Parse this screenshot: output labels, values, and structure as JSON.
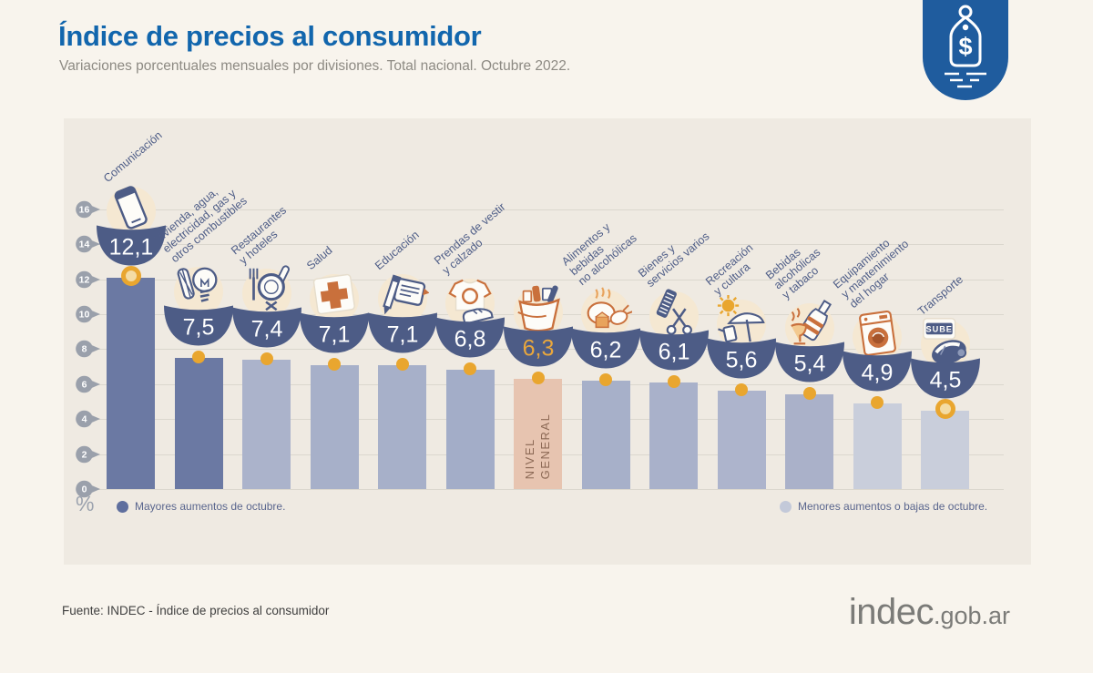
{
  "header": {
    "title": "Índice de precios al consumidor",
    "subtitle": "Variaciones porcentuales mensuales por divisiones. Total nacional. Octubre 2022.",
    "logo_icon": "price-tag-icon"
  },
  "chart_data": {
    "type": "bar",
    "title": "Índice de precios al consumidor",
    "xlabel": "",
    "ylabel": "%",
    "ylim": [
      0,
      16
    ],
    "yticks": [
      0,
      2,
      4,
      6,
      8,
      10,
      12,
      14,
      16
    ],
    "grid": true,
    "legend_position": "bottom",
    "series": [
      {
        "label": "Comunicación",
        "display": "12,1",
        "value": 12.1,
        "icon": "phone-icon",
        "color": "#6b79a3",
        "marker": "ring",
        "group": "major"
      },
      {
        "label": "Vivienda, agua,\nelectricidad, gas y\notros combustibles",
        "display": "7,5",
        "value": 7.5,
        "icon": "lightbulb-icon",
        "color": "#6b79a3",
        "marker": "dot",
        "group": "major"
      },
      {
        "label": "Restaurantes\ny hoteles",
        "display": "7,4",
        "value": 7.4,
        "icon": "dining-icon",
        "color": "#abb3cb",
        "marker": "dot",
        "group": "minor"
      },
      {
        "label": "Salud",
        "display": "7,1",
        "value": 7.1,
        "icon": "health-cross-icon",
        "color": "#a7b0c9",
        "marker": "dot",
        "group": "minor"
      },
      {
        "label": "Educación",
        "display": "7,1",
        "value": 7.1,
        "icon": "education-icon",
        "color": "#a7b0c9",
        "marker": "dot",
        "group": "minor"
      },
      {
        "label": "Prendas de vestir\ny calzado",
        "display": "6,8",
        "value": 6.8,
        "icon": "clothing-icon",
        "color": "#a3adc8",
        "marker": "dot",
        "group": "minor"
      },
      {
        "label": "",
        "bar_text": "NIVEL\nGENERAL",
        "display": "6,3",
        "value": 6.3,
        "icon": "grocery-bag-icon",
        "color": "#e7c4b0",
        "marker": "dot",
        "group": "general"
      },
      {
        "label": "Alimentos y\nbebidas\nno alcohólicas",
        "display": "6,2",
        "value": 6.2,
        "icon": "food-icon",
        "color": "#a7b0c9",
        "marker": "dot",
        "group": "minor"
      },
      {
        "label": "Bienes y\nservicios varios",
        "display": "6,1",
        "value": 6.1,
        "icon": "personal-care-icon",
        "color": "#a9b1ca",
        "marker": "dot",
        "group": "minor"
      },
      {
        "label": "Recreación\ny cultura",
        "display": "5,6",
        "value": 5.6,
        "icon": "recreation-icon",
        "color": "#adb4cc",
        "marker": "dot",
        "group": "minor"
      },
      {
        "label": "Bebidas\nalcohólicas\ny tabaco",
        "display": "5,4",
        "value": 5.4,
        "icon": "drinks-tobacco-icon",
        "color": "#aab1c9",
        "marker": "dot",
        "group": "minor"
      },
      {
        "label": "Equipamiento\ny mantenimiento\ndel hogar",
        "display": "4,9",
        "value": 4.9,
        "icon": "washing-machine-icon",
        "color": "#c9cedb",
        "marker": "dot",
        "group": "minor"
      },
      {
        "label": "Transporte",
        "display": "4,5",
        "value": 4.5,
        "icon": "sube-card-icon",
        "color": "#c9cedb",
        "marker": "ring",
        "group": "minor"
      }
    ],
    "legend": [
      {
        "label": "Mayores aumentos de octubre.",
        "color": "#5f6f9e"
      },
      {
        "label": "Menores aumentos o bajas de octubre.",
        "color": "#c3c9d9"
      }
    ]
  },
  "footer": {
    "source": "Fuente: INDEC - Índice de precios al consumidor",
    "brand": "indec",
    "brand_suffix": ".gob.ar"
  },
  "palette": {
    "background": "#f8f4ed",
    "panel": "#efeae2",
    "title_blue": "#1266ad",
    "badge_navy": "#4d5c86",
    "marker_gold": "#e9a62f",
    "general_value_gold": "#e9a73c",
    "general_bar_peach": "#e7c4b0",
    "general_bar_text": "#8d6a56",
    "grid": "#dbd7ce",
    "axis_pin": "#9aa0ab",
    "label_text": "#4e5d87",
    "logo_navy": "#1f5c9e"
  }
}
